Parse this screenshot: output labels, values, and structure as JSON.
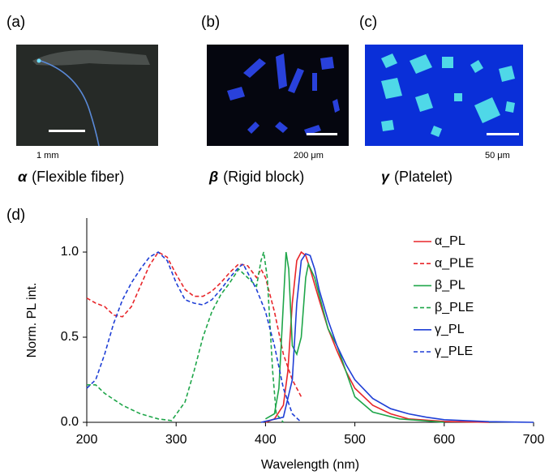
{
  "panels": [
    {
      "label": "(a)",
      "scale": "1 mm",
      "symbol": "α",
      "caption": "(Flexible fiber)"
    },
    {
      "label": "(b)",
      "scale": "200 μm",
      "symbol": "β",
      "caption": "(Rigid block)"
    },
    {
      "label": "(c)",
      "scale": "50 μm",
      "symbol": "γ",
      "caption": "(Platelet)"
    }
  ],
  "chart_data": {
    "type": "line",
    "panel_label": "(d)",
    "x_label": "Wavelength (nm)",
    "y_label": "Norm. PL int.",
    "xlim": [
      200,
      700
    ],
    "xticks": [
      200,
      300,
      400,
      500,
      600,
      700
    ],
    "ylim": [
      0,
      1.2
    ],
    "yticks": [
      {
        "value": 0,
        "label": "0.0"
      },
      {
        "value": 0.5,
        "label": "0.5"
      },
      {
        "value": 1,
        "label": "1.0"
      }
    ],
    "legend": "top-right",
    "series": [
      {
        "name": "α_PL",
        "color": "#e8262a",
        "style": "solid",
        "x": [
          400,
          410,
          420,
          425,
          430,
          435,
          440,
          445,
          450,
          460,
          470,
          480,
          490,
          500,
          520,
          540,
          560,
          600,
          650
        ],
        "values": [
          0,
          0.02,
          0.1,
          0.3,
          0.7,
          0.95,
          1.0,
          0.98,
          0.9,
          0.72,
          0.55,
          0.42,
          0.3,
          0.2,
          0.1,
          0.05,
          0.02,
          0.005,
          0
        ]
      },
      {
        "name": "α_PLE",
        "color": "#e8262a",
        "style": "dashed",
        "x": [
          200,
          210,
          220,
          230,
          240,
          250,
          260,
          270,
          280,
          290,
          300,
          310,
          320,
          330,
          340,
          350,
          360,
          370,
          380,
          390,
          395,
          400,
          410,
          420,
          430,
          440
        ],
        "values": [
          0.73,
          0.7,
          0.68,
          0.63,
          0.62,
          0.68,
          0.8,
          0.92,
          1.0,
          0.97,
          0.87,
          0.78,
          0.74,
          0.74,
          0.77,
          0.82,
          0.88,
          0.93,
          0.92,
          0.85,
          0.9,
          0.85,
          0.65,
          0.4,
          0.25,
          0.15
        ]
      },
      {
        "name": "β_PL",
        "color": "#1fa64a",
        "style": "solid",
        "x": [
          400,
          410,
          415,
          420,
          423,
          426,
          430,
          435,
          440,
          445,
          448,
          455,
          460,
          470,
          480,
          490,
          500,
          520,
          550,
          600
        ],
        "values": [
          0.02,
          0.05,
          0.2,
          0.7,
          1.0,
          0.9,
          0.45,
          0.4,
          0.5,
          0.85,
          0.93,
          0.85,
          0.75,
          0.55,
          0.45,
          0.3,
          0.15,
          0.06,
          0.02,
          0
        ]
      },
      {
        "name": "β_PLE",
        "color": "#1fa64a",
        "style": "dashed",
        "x": [
          200,
          210,
          220,
          240,
          260,
          280,
          295,
          310,
          320,
          330,
          340,
          350,
          360,
          370,
          380,
          390,
          395,
          398,
          402,
          408,
          412,
          420
        ],
        "values": [
          0.22,
          0.22,
          0.17,
          0.1,
          0.05,
          0.02,
          0.01,
          0.12,
          0.3,
          0.5,
          0.65,
          0.75,
          0.82,
          0.9,
          0.85,
          0.8,
          0.95,
          1.0,
          0.85,
          0.3,
          0.05,
          0
        ]
      },
      {
        "name": "γ_PL",
        "color": "#1f3fd6",
        "style": "solid",
        "x": [
          395,
          420,
          430,
          435,
          440,
          445,
          450,
          455,
          460,
          470,
          480,
          490,
          500,
          520,
          540,
          560,
          580,
          600,
          650,
          700
        ],
        "values": [
          0,
          0.03,
          0.25,
          0.7,
          0.95,
          0.99,
          0.98,
          0.9,
          0.78,
          0.6,
          0.45,
          0.34,
          0.25,
          0.14,
          0.08,
          0.05,
          0.03,
          0.015,
          0.004,
          0
        ]
      },
      {
        "name": "γ_PLE",
        "color": "#1f3fd6",
        "style": "dashed",
        "x": [
          200,
          210,
          220,
          230,
          240,
          250,
          260,
          270,
          280,
          290,
          300,
          310,
          320,
          330,
          340,
          350,
          360,
          370,
          375,
          380,
          390,
          400,
          410,
          420,
          430,
          440
        ],
        "values": [
          0.2,
          0.25,
          0.4,
          0.58,
          0.72,
          0.82,
          0.9,
          0.97,
          1.0,
          0.95,
          0.82,
          0.72,
          0.7,
          0.69,
          0.72,
          0.78,
          0.85,
          0.91,
          0.93,
          0.88,
          0.78,
          0.65,
          0.45,
          0.2,
          0.05,
          0
        ]
      }
    ]
  }
}
